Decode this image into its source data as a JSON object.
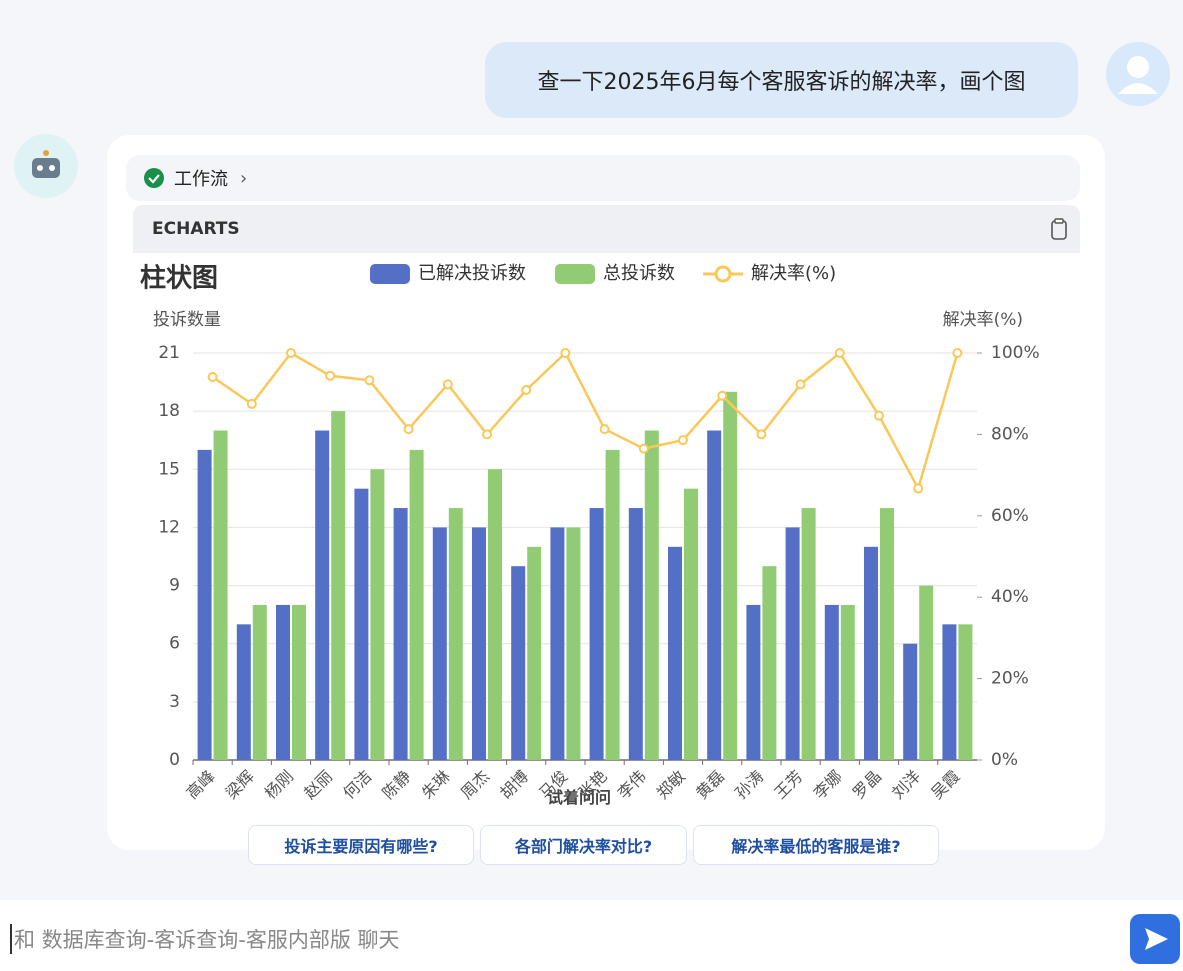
{
  "user_message": "查一下2025年6月每个客服客诉的解决率，画个图",
  "workflow_label": "工作流",
  "panel_label": "ECHARTS",
  "chart_data": {
    "type": "bar",
    "title": "柱状图",
    "y_label": "投诉数量",
    "y2_label": "解决率(%)",
    "categories": [
      "高峰",
      "梁辉",
      "杨刚",
      "赵丽",
      "何洁",
      "陈静",
      "朱琳",
      "周杰",
      "胡博",
      "马俊",
      "张艳",
      "李伟",
      "郑敏",
      "黄磊",
      "孙涛",
      "王芳",
      "李娜",
      "罗晶",
      "刘洋",
      "吴霞"
    ],
    "series": [
      {
        "name": "已解决投诉数",
        "type": "bar",
        "color": "#5470c6",
        "values": [
          16,
          7,
          8,
          17,
          14,
          13,
          12,
          12,
          10,
          12,
          13,
          13,
          11,
          17,
          8,
          12,
          8,
          11,
          6,
          7
        ]
      },
      {
        "name": "总投诉数",
        "type": "bar",
        "color": "#91cc75",
        "values": [
          17,
          8,
          8,
          18,
          15,
          16,
          13,
          15,
          11,
          12,
          16,
          17,
          14,
          19,
          10,
          13,
          8,
          13,
          9,
          7
        ]
      },
      {
        "name": "解决率(%)",
        "type": "line",
        "axis": "y2",
        "color": "#fac858",
        "values": [
          94.1,
          87.5,
          100,
          94.4,
          93.3,
          81.3,
          92.3,
          80,
          90.9,
          100,
          81.3,
          76.5,
          78.6,
          89.5,
          80,
          92.3,
          100,
          84.6,
          66.7,
          100
        ]
      }
    ],
    "ylim": [
      0,
      21
    ],
    "yticks": [
      0,
      3,
      6,
      9,
      12,
      15,
      18,
      21
    ],
    "y2lim": [
      0,
      100
    ],
    "y2ticks": [
      {
        "value": 0,
        "label": "0%"
      },
      {
        "value": 20,
        "label": "20%"
      },
      {
        "value": 40,
        "label": "40%"
      },
      {
        "value": 60,
        "label": "60%"
      },
      {
        "value": 80,
        "label": "80%"
      },
      {
        "value": 100,
        "label": "100%"
      }
    ],
    "grid": true,
    "legend": "top"
  },
  "suggestions_title": "试着问问",
  "suggestions": [
    "投诉主要原因有哪些?",
    "各部门解决率对比?",
    "解决率最低的客服是谁?"
  ],
  "input_placeholder": "和 数据库查询-客诉查询-客服内部版 聊天"
}
